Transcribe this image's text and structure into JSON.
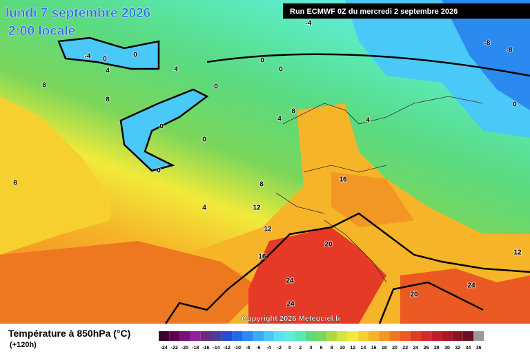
{
  "header": {
    "title": "lundi 7 septembre 2026",
    "subtitle": "2:00 locale",
    "run": "Run ECMWF 0Z du mercredi 2 septembre 2026"
  },
  "map": {
    "contour_labels": [
      -4,
      -8,
      -8,
      -4,
      0,
      0,
      4,
      4,
      0,
      0,
      0,
      8,
      8,
      8,
      4,
      4,
      0,
      0,
      0,
      0,
      8,
      16,
      8,
      4,
      12,
      12,
      20,
      12,
      16,
      24,
      24,
      20,
      24
    ]
  },
  "footer": {
    "copyright": "Copyright 2026 Meteociel.fr",
    "legend_title": "Température à 850hPa (°C)",
    "lead": "(+120h)",
    "scale": {
      "ticks": [
        -24,
        -22,
        -20,
        -18,
        -16,
        -14,
        -12,
        -10,
        -8,
        -6,
        -4,
        -2,
        0,
        2,
        4,
        6,
        8,
        10,
        12,
        14,
        16,
        18,
        20,
        22,
        24,
        26,
        28,
        30,
        32,
        34,
        36
      ],
      "colors": [
        "#3a0030",
        "#5a0050",
        "#7a0f7a",
        "#95209a",
        "#6b2c7a",
        "#4a3a9a",
        "#2a4ad0",
        "#1f6ae8",
        "#2a8af0",
        "#3aaaf5",
        "#4ac8f8",
        "#5ae0f0",
        "#60ecd8",
        "#5ae8b0",
        "#5ada80",
        "#7ad65a",
        "#a8dc46",
        "#d6e43c",
        "#f2ea3a",
        "#f6d02e",
        "#f6b428",
        "#f29624",
        "#ee7820",
        "#ea5a22",
        "#e43a26",
        "#d62a2a",
        "#c21e2a",
        "#a81628",
        "#8a1424",
        "#6a1220",
        "#9a9a9a"
      ]
    }
  }
}
